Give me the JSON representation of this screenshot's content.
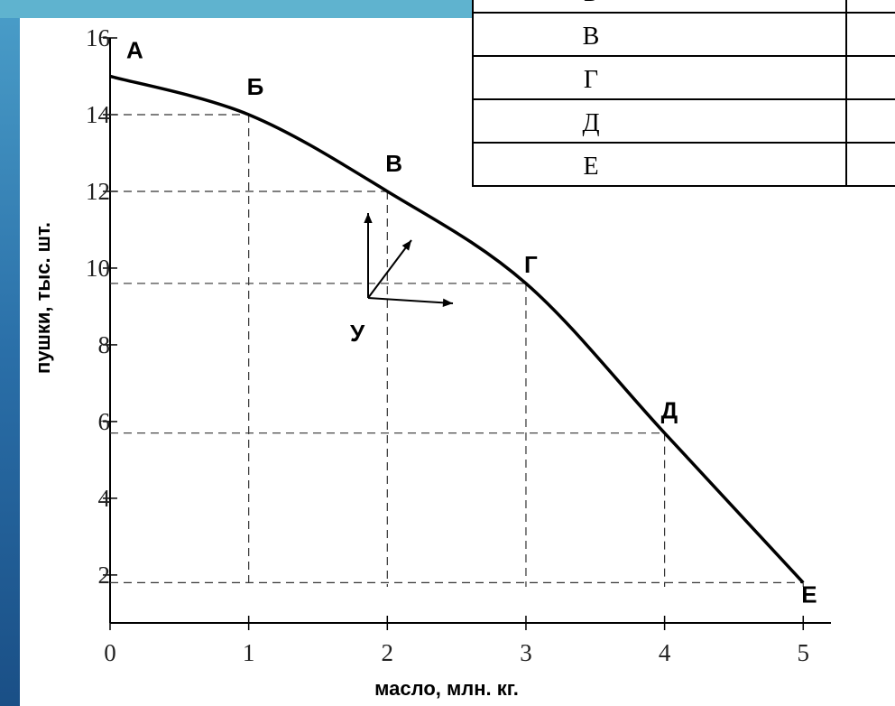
{
  "chart_data": {
    "type": "line",
    "x_label": "масло, млн. кг.",
    "y_label": "пушки, тыс. шт.",
    "x": [
      0,
      1,
      2,
      3,
      4,
      5
    ],
    "values": [
      15,
      14,
      12,
      9.6,
      5.7,
      1.8
    ],
    "point_labels": [
      "А",
      "Б",
      "В",
      "Г",
      "Д",
      "Е"
    ],
    "annotation": "У",
    "color": "#000000",
    "xlim": [
      0,
      5.2
    ],
    "xticks": [
      0,
      1,
      2,
      3,
      4,
      5
    ],
    "ylim": [
      0.75,
      16
    ],
    "yticks": [
      2,
      4,
      6,
      8,
      10,
      12,
      14,
      16
    ]
  },
  "table": {
    "rows": [
      "Б",
      "В",
      "Г",
      "Д",
      "Е"
    ]
  }
}
